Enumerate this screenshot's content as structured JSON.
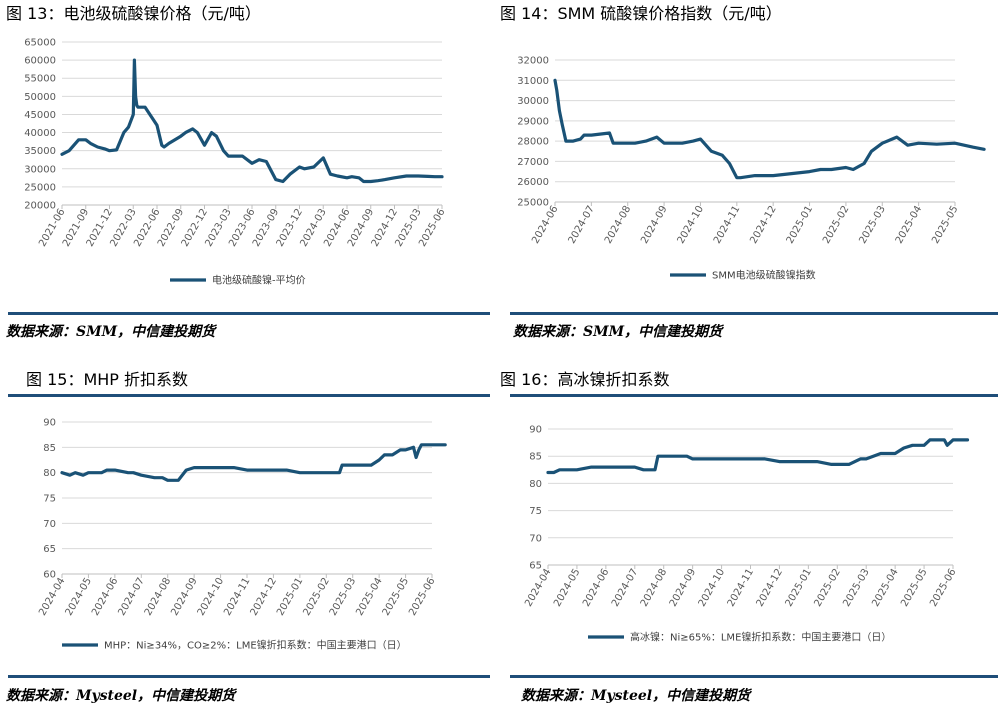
{
  "colors": {
    "series": "#1a5276",
    "rule": "#1f4e79",
    "grid": "#d9d9d9",
    "axis_text": "#595959"
  },
  "panels": [
    {
      "title": "图 13：电池级硫酸镍价格（元/吨）",
      "source": "数据来源：SMM，中信建投期货"
    },
    {
      "title": "图 14：SMM 硫酸镍价格指数（元/吨）",
      "source": "数据来源：SMM，中信建投期货"
    },
    {
      "title": "图 15：MHP 折扣系数",
      "source": "数据来源：Mysteel，中信建投期货"
    },
    {
      "title": "图 16：高冰镍折扣系数",
      "source": "数据来源：Mysteel，中信建投期货"
    }
  ],
  "chart_data": [
    {
      "type": "line",
      "title": "",
      "ylim": [
        20000,
        65000
      ],
      "yticks": [
        20000,
        25000,
        30000,
        35000,
        40000,
        45000,
        50000,
        55000,
        60000,
        65000
      ],
      "categories": [
        "2021-06",
        "2021-09",
        "2021-12",
        "2022-03",
        "2022-06",
        "2022-09",
        "2022-12",
        "2023-03",
        "2023-06",
        "2023-09",
        "2023-12",
        "2024-03",
        "2024-06",
        "2024-09",
        "2024-12",
        "2025-03",
        "2025-06"
      ],
      "grid": true,
      "legend_position": "bottom",
      "series": [
        {
          "name": "电池级硫酸镍-平均价",
          "x": [
            0,
            0.3,
            0.7,
            1,
            1.2,
            1.5,
            1.8,
            2,
            2.3,
            2.6,
            2.8,
            3,
            3.05,
            3.1,
            3.15,
            3.2,
            3.5,
            3.8,
            4,
            4.2,
            4.3,
            4.5,
            5,
            5.2,
            5.5,
            5.7,
            6,
            6.3,
            6.5,
            6.8,
            7,
            7.3,
            7.6,
            8,
            8.3,
            8.6,
            9,
            9.3,
            9.6,
            10,
            10.2,
            10.6,
            11,
            11.3,
            11.6,
            12,
            12.2,
            12.5,
            12.7,
            13,
            13.3,
            13.6,
            14,
            14.5,
            15,
            15.4,
            15.7,
            16
          ],
          "y": [
            34000,
            35000,
            38000,
            38000,
            37000,
            36000,
            35500,
            35000,
            35200,
            40000,
            41500,
            45000,
            60000,
            50000,
            47500,
            47000,
            47000,
            44000,
            42000,
            36500,
            36000,
            37000,
            39000,
            40000,
            41000,
            40000,
            36500,
            40000,
            39000,
            35000,
            33500,
            33500,
            33500,
            31500,
            32500,
            32000,
            27000,
            26500,
            28500,
            30500,
            30000,
            30500,
            33000,
            28500,
            28000,
            27500,
            27800,
            27500,
            26500,
            26500,
            26700,
            27000,
            27500,
            28000,
            28000,
            27900,
            27800,
            27800
          ]
        }
      ]
    },
    {
      "type": "line",
      "title": "",
      "ylim": [
        25000,
        32000
      ],
      "yticks": [
        25000,
        26000,
        27000,
        28000,
        29000,
        30000,
        31000,
        32000
      ],
      "categories": [
        "2024-06",
        "2024-07",
        "2024-08",
        "2024-09",
        "2024-10",
        "2024-11",
        "2024-12",
        "2025-01",
        "2025-02",
        "2025-03",
        "2025-04",
        "2025-05"
      ],
      "grid": true,
      "legend_position": "bottom",
      "series": [
        {
          "name": "SMM电池级硫酸镍指数",
          "x": [
            0,
            0.05,
            0.12,
            0.2,
            0.3,
            0.5,
            0.7,
            0.8,
            1,
            1.5,
            1.6,
            2,
            2.2,
            2.5,
            2.8,
            3,
            3.5,
            3.8,
            4,
            4.3,
            4.6,
            4.8,
            5,
            5.1,
            5.5,
            6,
            6.5,
            7,
            7.3,
            7.6,
            8,
            8.2,
            8.5,
            8.7,
            9,
            9.4,
            9.7,
            10,
            10.5,
            11,
            11.5,
            11.8
          ],
          "y": [
            31000,
            30500,
            29500,
            28800,
            28000,
            28000,
            28100,
            28300,
            28300,
            28400,
            27900,
            27900,
            27900,
            28000,
            28200,
            27900,
            27900,
            28000,
            28100,
            27500,
            27300,
            26900,
            26200,
            26200,
            26300,
            26300,
            26400,
            26500,
            26600,
            26600,
            26700,
            26600,
            26900,
            27500,
            27900,
            28200,
            27800,
            27900,
            27850,
            27900,
            27700,
            27600
          ]
        }
      ]
    },
    {
      "type": "line",
      "title": "",
      "ylim": [
        60,
        90
      ],
      "yticks": [
        60,
        65,
        70,
        75,
        80,
        85,
        90
      ],
      "categories": [
        "2024-04",
        "2024-05",
        "2024-06",
        "2024-07",
        "2024-08",
        "2024-09",
        "2024-10",
        "2024-11",
        "2024-12",
        "2025-01",
        "2025-02",
        "2025-03",
        "2025-04",
        "2025-05",
        "2025-06"
      ],
      "grid": true,
      "legend_position": "bottom",
      "series": [
        {
          "name": "MHP：Ni≥34%，CO≥2%：LME镍折扣系数：中国主要港口（日）",
          "x": [
            0,
            0.3,
            0.5,
            0.8,
            1,
            1.5,
            1.7,
            2,
            2.5,
            2.7,
            3,
            3.5,
            3.8,
            4,
            4.4,
            4.7,
            5,
            6,
            6.5,
            7,
            7.5,
            8,
            8.5,
            9,
            9.5,
            10,
            10.5,
            10.6,
            11,
            11.5,
            11.7,
            12,
            12.2,
            12.5,
            12.8,
            13,
            13.3,
            13.4,
            13.5,
            13.6,
            14,
            14.1,
            14.5
          ],
          "y": [
            80,
            79.5,
            80,
            79.5,
            80,
            80,
            80.5,
            80.5,
            80,
            80,
            79.5,
            79,
            79,
            78.5,
            78.5,
            80.5,
            81,
            81,
            81,
            80.5,
            80.5,
            80.5,
            80.5,
            80,
            80,
            80,
            80,
            81.5,
            81.5,
            81.5,
            81.5,
            82.5,
            83.5,
            83.5,
            84.5,
            84.5,
            85,
            83,
            84.5,
            85.5,
            85.5,
            85.5,
            85.5
          ]
        }
      ]
    },
    {
      "type": "line",
      "title": "",
      "ylim": [
        65,
        90
      ],
      "yticks": [
        65,
        70,
        75,
        80,
        85,
        90
      ],
      "categories": [
        "2024-04",
        "2024-05",
        "2024-06",
        "2024-07",
        "2024-08",
        "2024-09",
        "2024-10",
        "2024-11",
        "2024-12",
        "2025-01",
        "2025-02",
        "2025-03",
        "2025-04",
        "2025-05",
        "2025-06"
      ],
      "grid": true,
      "legend_position": "bottom",
      "series": [
        {
          "name": "高冰镍：Ni≥65%：LME镍折扣系数：中国主要港口（日）",
          "x": [
            0,
            0.2,
            0.4,
            0.7,
            1,
            1.5,
            1.9,
            2.5,
            3,
            3.3,
            3.6,
            3.7,
            3.8,
            4,
            4.4,
            4.8,
            5,
            6,
            7,
            7.5,
            8,
            8.4,
            8.8,
            9.3,
            9.8,
            10,
            10.4,
            10.8,
            11,
            11.5,
            11.8,
            12,
            12.3,
            12.6,
            13,
            13.2,
            13.6,
            13.7,
            13.8,
            14,
            14.3,
            14.5
          ],
          "y": [
            82,
            82,
            82.5,
            82.5,
            82.5,
            83,
            83,
            83,
            83,
            82.5,
            82.5,
            82.5,
            85,
            85,
            85,
            85,
            84.5,
            84.5,
            84.5,
            84.5,
            84,
            84,
            84,
            84,
            83.5,
            83.5,
            83.5,
            84.5,
            84.5,
            85.5,
            85.5,
            85.5,
            86.5,
            87,
            87,
            88,
            88,
            88,
            87,
            88,
            88,
            88
          ]
        }
      ]
    }
  ]
}
